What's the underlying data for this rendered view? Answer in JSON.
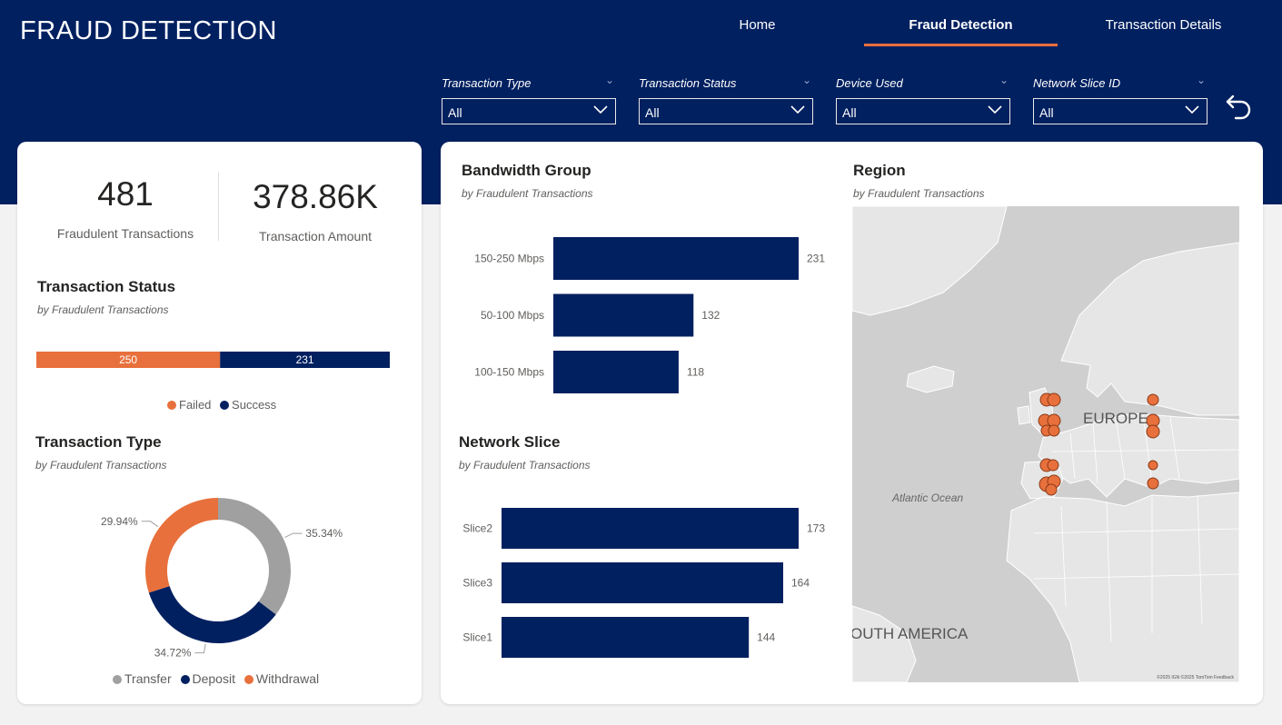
{
  "header": {
    "title": "FRAUD DETECTION",
    "nav": [
      {
        "label": "Home"
      },
      {
        "label": "Fraud Detection"
      },
      {
        "label": "Transaction Details"
      }
    ],
    "active_tab": "Fraud Detection"
  },
  "filters": [
    {
      "label": "Transaction Type",
      "value": "All"
    },
    {
      "label": "Transaction Status",
      "value": "All"
    },
    {
      "label": "Device Used",
      "value": "All"
    },
    {
      "label": "Network Slice ID",
      "value": "All"
    }
  ],
  "icons": {
    "reset": "undo-arrow-icon",
    "dropdown": "chevron-down-icon"
  },
  "kpis": [
    {
      "value": "481",
      "label": "Fraudulent Transactions"
    },
    {
      "value": "378.86K",
      "label": "Transaction Amount"
    }
  ],
  "colors": {
    "navy": "#012060",
    "orange": "#e8703c",
    "gray": "#a0a0a0",
    "map_land": "#e6e6e6",
    "map_water": "#cfcfcf"
  },
  "transaction_status": {
    "title": "Transaction Status",
    "subtitle": "by Fraudulent Transactions",
    "legend": [
      {
        "name": "Failed",
        "color": "#e8703c"
      },
      {
        "name": "Success",
        "color": "#012060"
      }
    ]
  },
  "transaction_type": {
    "title": "Transaction Type",
    "subtitle": "by Fraudulent Transactions",
    "legend": [
      {
        "name": "Transfer",
        "color": "#a0a0a0"
      },
      {
        "name": "Deposit",
        "color": "#012060"
      },
      {
        "name": "Withdrawal",
        "color": "#e8703c"
      }
    ]
  },
  "bandwidth_group": {
    "title": "Bandwidth Group",
    "subtitle": "by Fraudulent Transactions"
  },
  "network_slice": {
    "title": "Network Slice",
    "subtitle": "by Fraudulent Transactions"
  },
  "region": {
    "title": "Region",
    "subtitle": "by Fraudulent Transactions",
    "map_labels": [
      "EUROPE",
      "Atlantic Ocean",
      "OUTH AMERICA"
    ],
    "attribution": "©2025 IGN ©2025 TomTom Feedback"
  },
  "chart_data": [
    {
      "type": "bar",
      "orientation": "horizontal-stacked",
      "categories": [
        "Failed",
        "Success"
      ],
      "values": [
        250,
        231
      ]
    },
    {
      "type": "pie",
      "variant": "donut",
      "categories": [
        "Transfer",
        "Deposit",
        "Withdrawal"
      ],
      "values": [
        35.34,
        34.72,
        29.94
      ],
      "labels": [
        "35.34%",
        "34.72%",
        "29.94%"
      ]
    },
    {
      "type": "bar",
      "orientation": "horizontal",
      "categories": [
        "150-250 Mbps",
        "50-100 Mbps",
        "100-150 Mbps"
      ],
      "values": [
        231,
        132,
        118
      ]
    },
    {
      "type": "bar",
      "orientation": "horizontal",
      "categories": [
        "Slice2",
        "Slice3",
        "Slice1"
      ],
      "values": [
        173,
        164,
        144
      ]
    }
  ]
}
